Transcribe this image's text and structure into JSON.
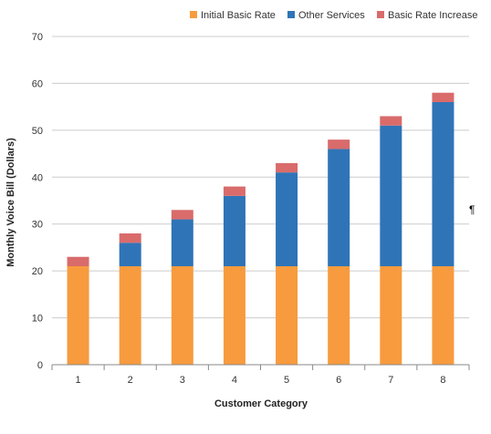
{
  "chart_data": {
    "type": "bar",
    "stacked": true,
    "categories": [
      "1",
      "2",
      "3",
      "4",
      "5",
      "6",
      "7",
      "8"
    ],
    "series": [
      {
        "name": "Initial Basic Rate",
        "color": "#f79b3e",
        "values": [
          21,
          21,
          21,
          21,
          21,
          21,
          21,
          21
        ]
      },
      {
        "name": "Other Services",
        "color": "#2f74b7",
        "values": [
          0,
          5,
          10,
          15,
          20,
          25,
          30,
          35
        ]
      },
      {
        "name": "Basic Rate Increase",
        "color": "#d96b6b",
        "values": [
          2,
          2,
          2,
          2,
          2,
          2,
          2,
          2
        ]
      }
    ],
    "xlabel": "Customer Category",
    "ylabel": "Monthly Voice Bill (Dollars)",
    "ylim": [
      0,
      70
    ],
    "yticks": [
      0,
      10,
      20,
      30,
      40,
      50,
      60,
      70
    ],
    "grid": true,
    "legend_position": "top-right"
  },
  "stray_mark": "¶",
  "colors": {
    "grid": "#cccccc",
    "axis": "#888888"
  }
}
